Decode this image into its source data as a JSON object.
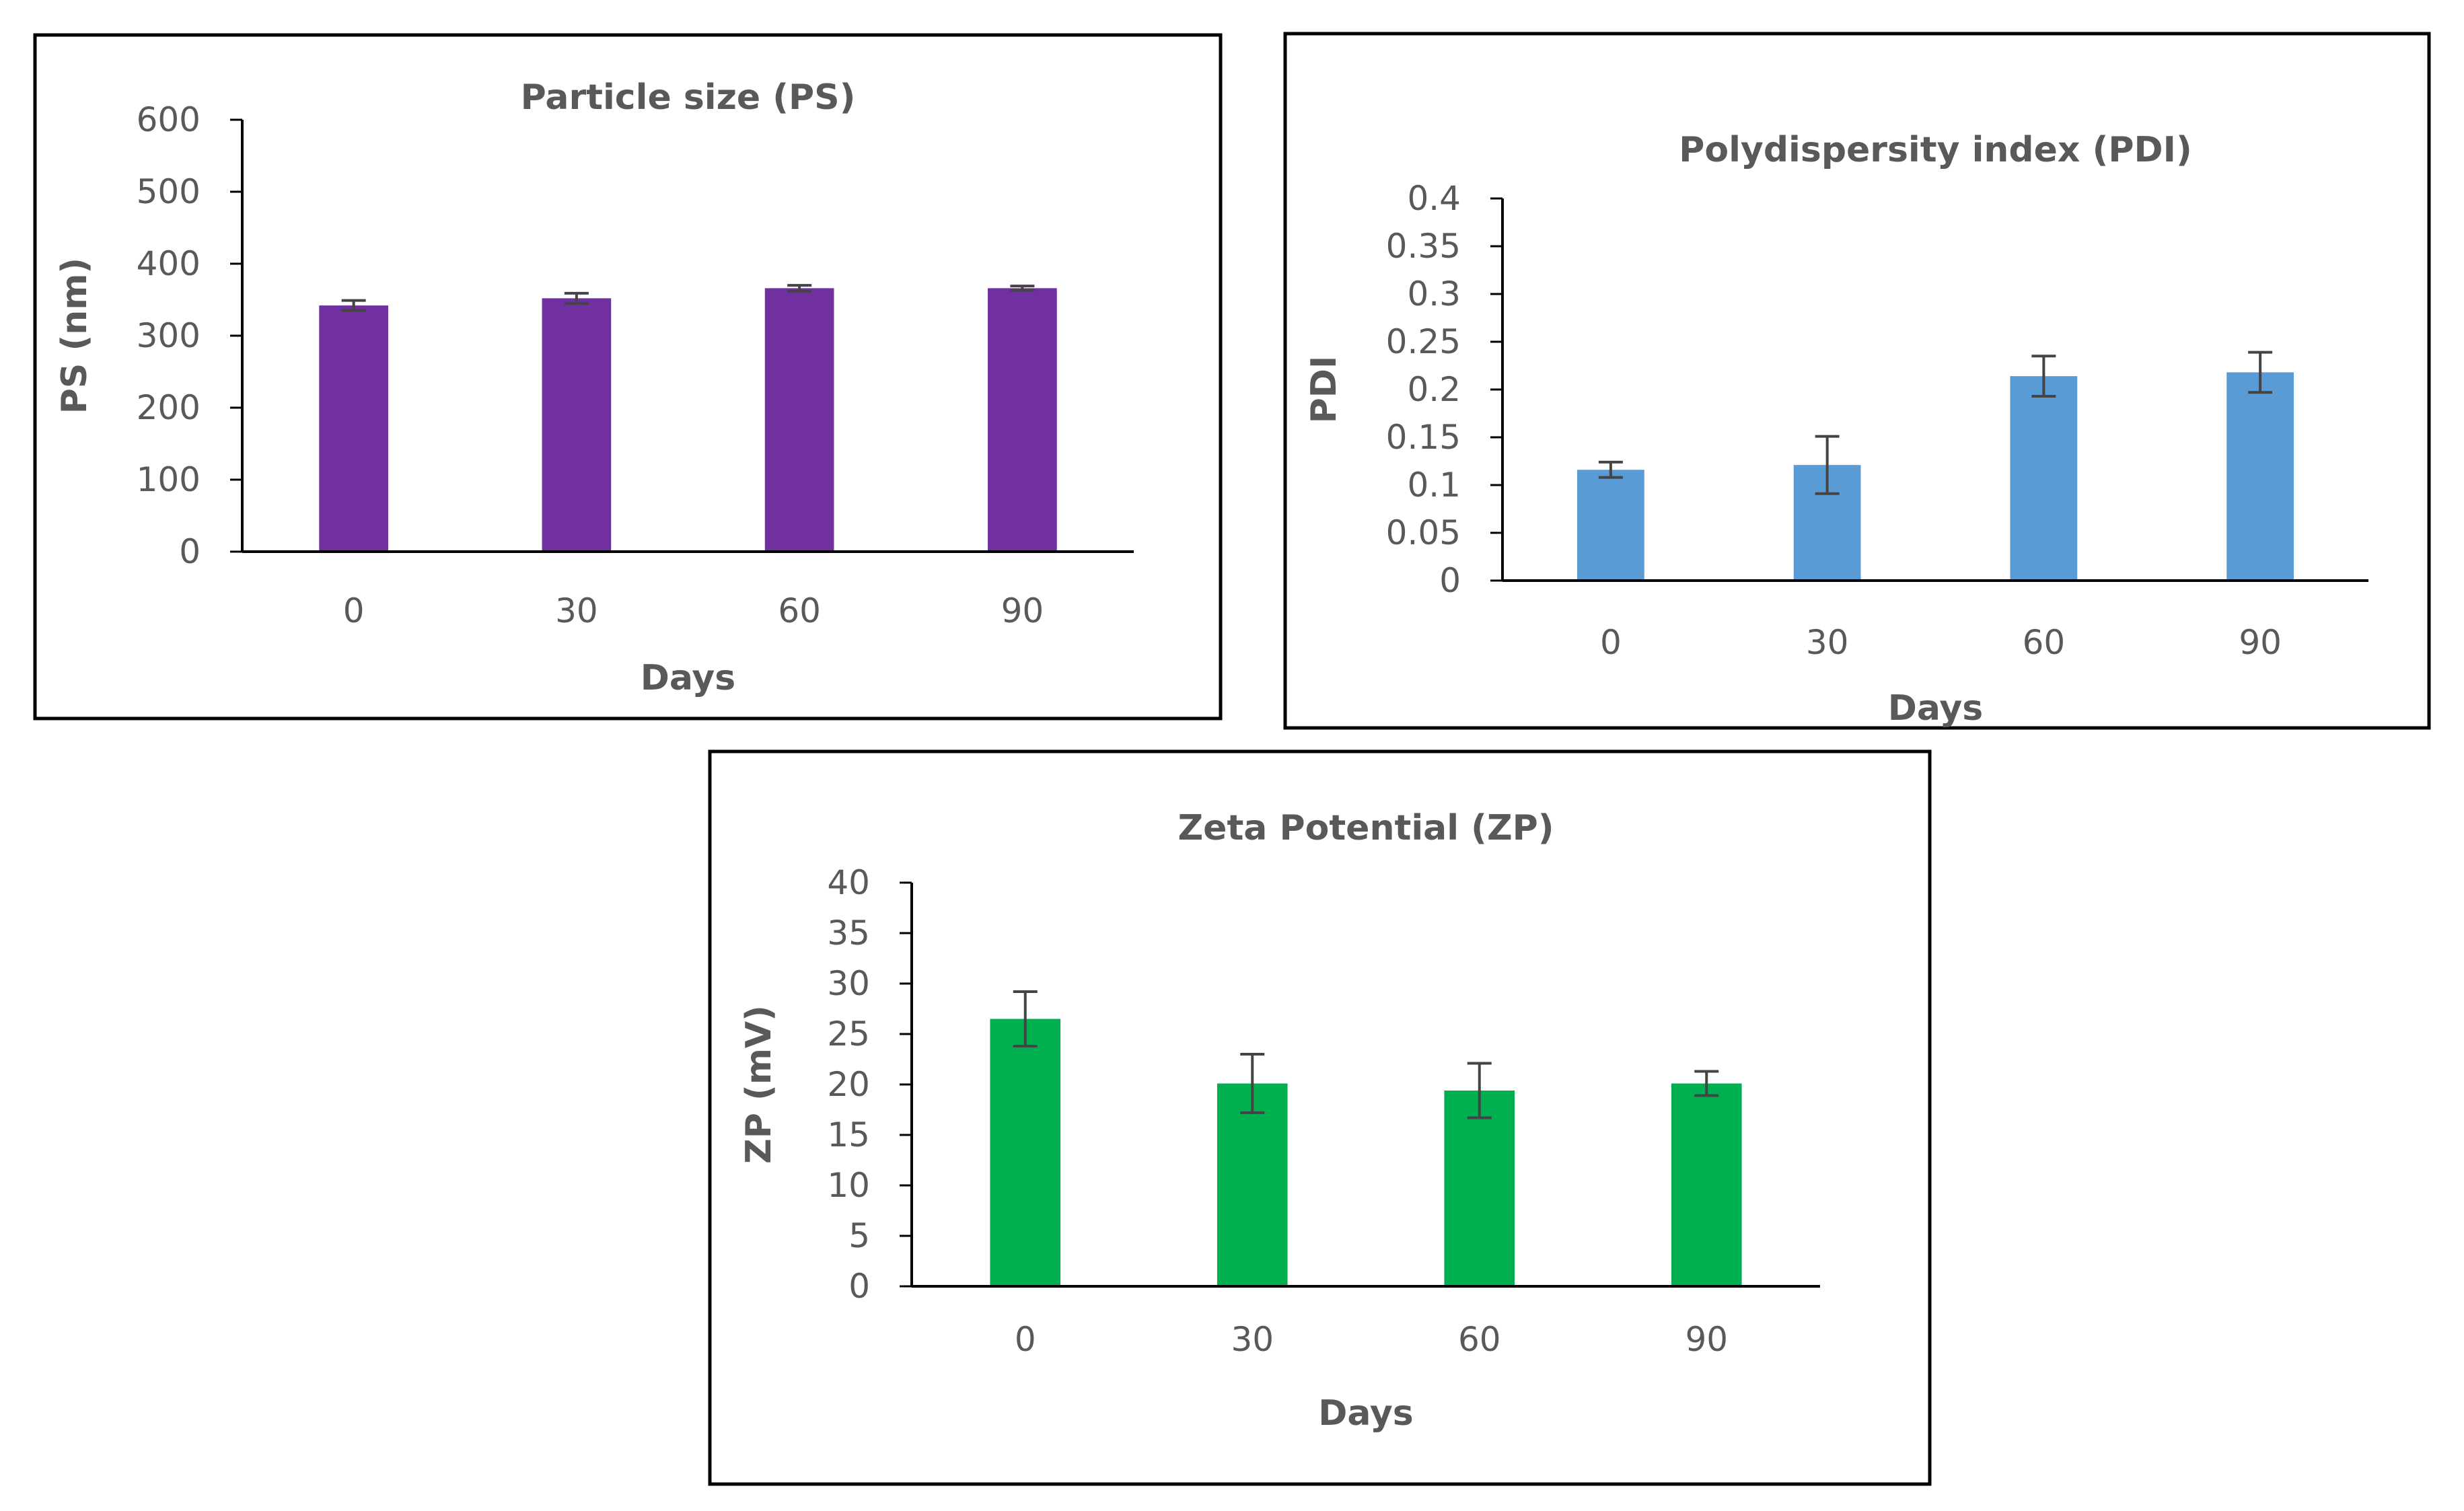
{
  "chart_data": [
    {
      "type": "bar",
      "title": "Particle size (PS)",
      "xlabel": "Days",
      "ylabel": "PS (nm)",
      "categories": [
        "0",
        "30",
        "60",
        "90"
      ],
      "values": [
        342,
        352,
        366,
        366
      ],
      "errors": [
        7,
        7,
        4,
        3
      ],
      "ylim": [
        0,
        600
      ],
      "yticks": [
        "0",
        "100",
        "200",
        "300",
        "400",
        "500",
        "600"
      ],
      "color": "#7030A0",
      "grid": false,
      "legend": "none"
    },
    {
      "type": "bar",
      "title": "Polydispersity index (PDI)",
      "xlabel": "Days",
      "ylabel": "PDI",
      "categories": [
        "0",
        "30",
        "60",
        "90"
      ],
      "values": [
        0.116,
        0.121,
        0.214,
        0.218
      ],
      "errors": [
        0.008,
        0.03,
        0.021,
        0.021
      ],
      "ylim": [
        0,
        0.4
      ],
      "yticks": [
        "0",
        "0.05",
        "0.1",
        "0.15",
        "0.2",
        "0.25",
        "0.3",
        "0.35",
        "0.4"
      ],
      "color": "#5B9BD5",
      "grid": false,
      "legend": "none"
    },
    {
      "type": "bar",
      "title": "Zeta Potential (ZP)",
      "xlabel": "Days",
      "ylabel": "ZP (mV)",
      "categories": [
        "0",
        "30",
        "60",
        "90"
      ],
      "values": [
        26.5,
        20.1,
        19.4,
        20.1
      ],
      "errors": [
        2.7,
        2.9,
        2.7,
        1.2
      ],
      "ylim": [
        0,
        40
      ],
      "yticks": [
        "0",
        "5",
        "10",
        "15",
        "20",
        "25",
        "30",
        "35",
        "40"
      ],
      "color": "#00B050",
      "grid": false,
      "legend": "none"
    }
  ]
}
